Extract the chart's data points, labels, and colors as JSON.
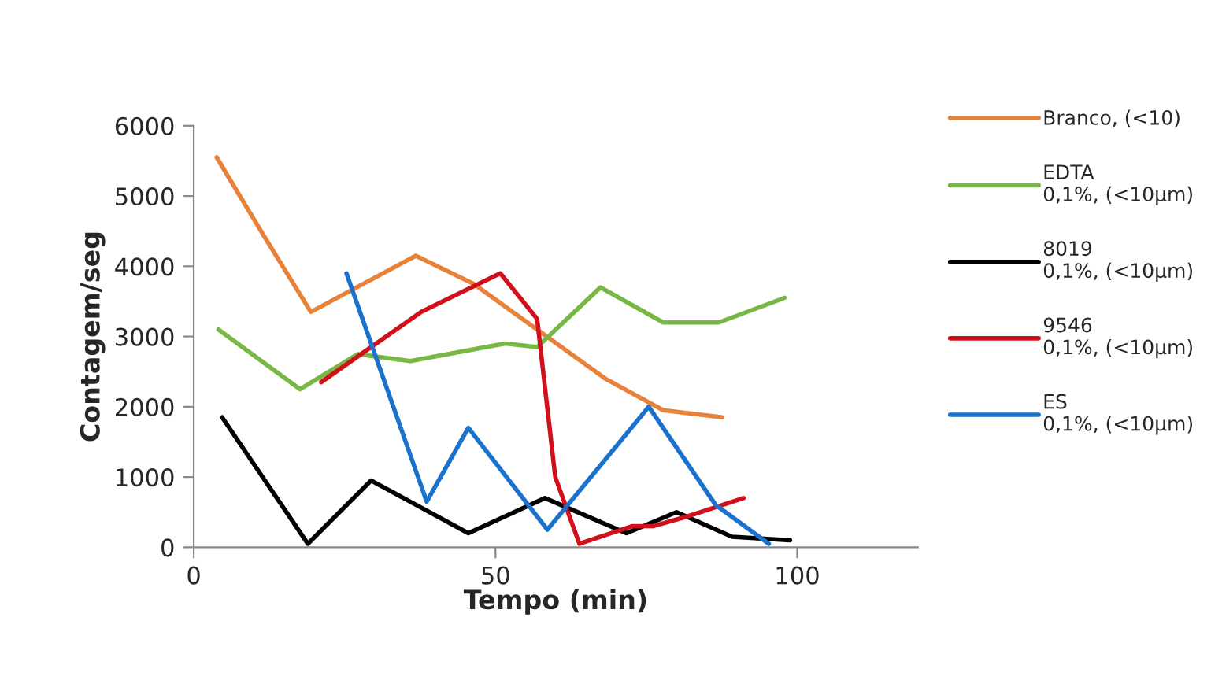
{
  "chart_data": {
    "type": "line",
    "xlabel": "Tempo (min)",
    "ylabel": "Contagem/seg",
    "xlim": [
      0,
      120
    ],
    "xticks": [
      0,
      50,
      100
    ],
    "ylim": [
      0,
      6000
    ],
    "yticks": [
      0,
      1000,
      2000,
      3000,
      4000,
      5000,
      6000
    ],
    "grid": false,
    "legend": "right",
    "marker": "none",
    "line_style": "solid",
    "series": [
      {
        "name": "Branco, (<10)",
        "color": "#e8823a",
        "x": [
          3.8,
          11.5,
          19.4,
          27,
          36.8,
          46.4,
          56.9,
          68.2,
          77.8,
          87.6
        ],
        "values": [
          5550,
          4450,
          3350,
          3700,
          4150,
          3750,
          3100,
          2400,
          1950,
          1850
        ]
      },
      {
        "name": "EDTA\n0,1%, (<10µm)",
        "color": "#76b843",
        "x": [
          4.1,
          17.6,
          27.2,
          35.9,
          51.6,
          56.9,
          67.4,
          77.8,
          87,
          97.9
        ],
        "values": [
          3100,
          2250,
          2750,
          2650,
          2900,
          2850,
          3700,
          3200,
          3200,
          3550
        ]
      },
      {
        "name": "8019\n0,1%, (<10µm)",
        "color": "#000000",
        "x": [
          4.7,
          18.9,
          29.4,
          45.5,
          58.2,
          71.7,
          80.0,
          89.2,
          98.8
        ],
        "values": [
          1850,
          50,
          950,
          200,
          700,
          200,
          500,
          150,
          100
        ]
      },
      {
        "name": "9546\n0,1%, (<10µm)",
        "color": "#d0101a",
        "x": [
          21.1,
          37.7,
          50.8,
          56.9,
          59.9,
          63.9,
          72.6,
          76.1,
          82.2,
          91.1
        ],
        "values": [
          2350,
          3350,
          3900,
          3250,
          1000,
          50,
          300,
          300,
          450,
          700
        ]
      },
      {
        "name": "ES\n0,1%, (<10µm)",
        "color": "#1a72cc",
        "x": [
          25.3,
          38.6,
          45.5,
          58.6,
          75.4,
          86.5,
          95.3
        ],
        "values": [
          3900,
          650,
          1700,
          250,
          2000,
          600,
          50
        ]
      }
    ]
  }
}
